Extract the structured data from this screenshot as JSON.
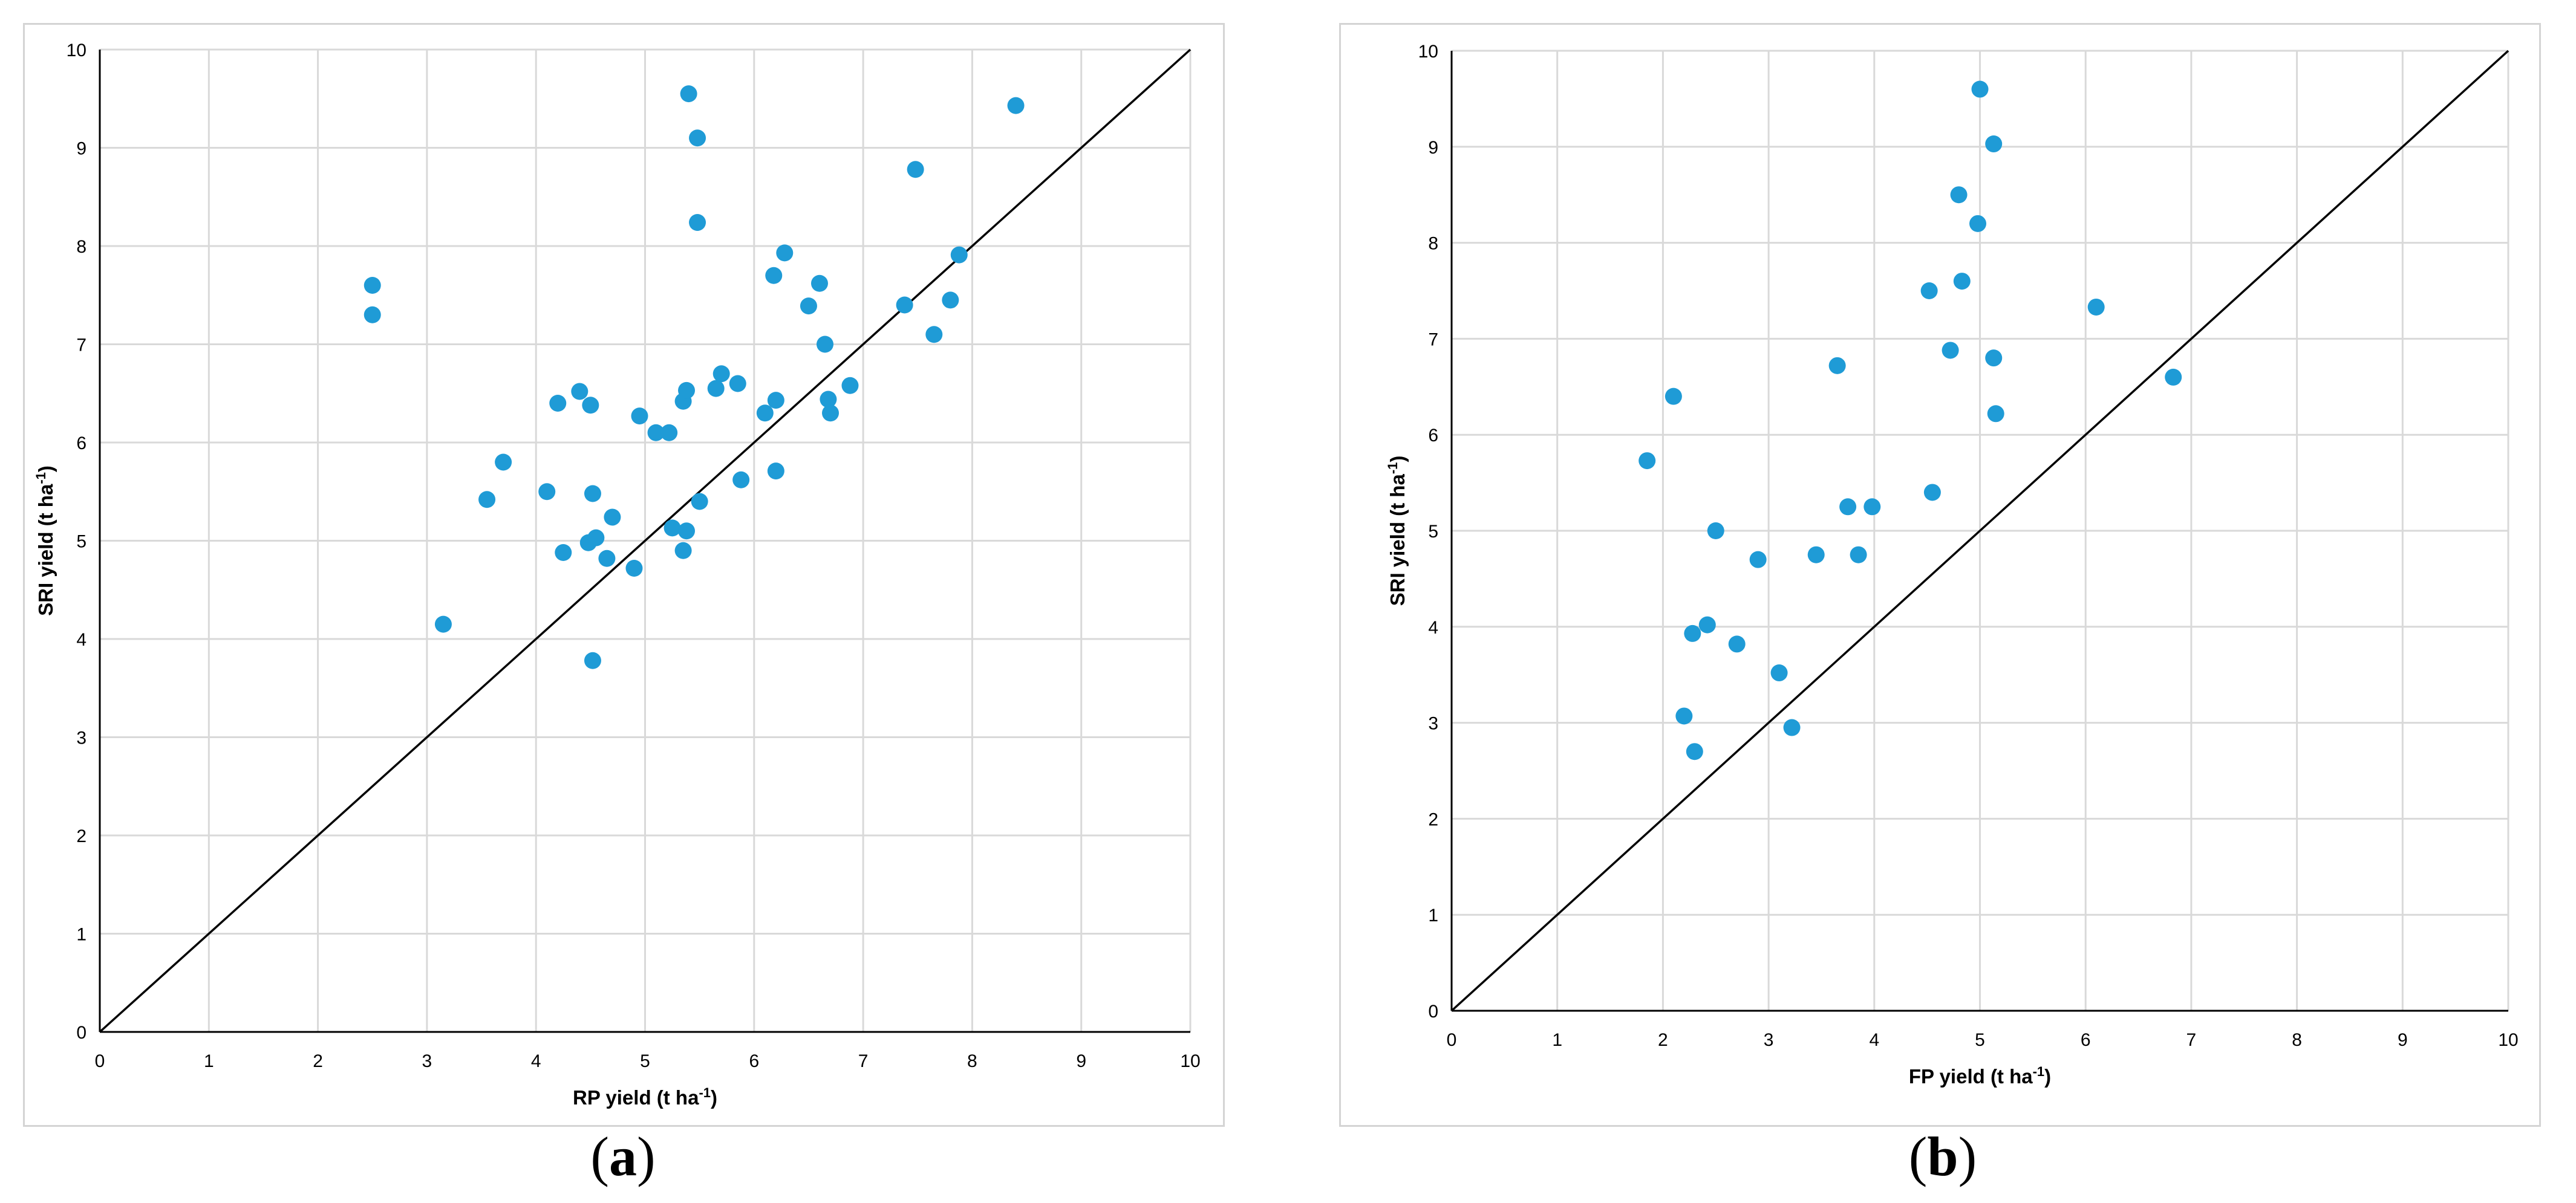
{
  "colors": {
    "point": "#1f9bd6",
    "grid": "#d9d9d9",
    "axis": "#000000",
    "frame": "#d4d4d4"
  },
  "panels": {
    "a": {
      "label_open": "(",
      "label_letter": "a",
      "label_close": ")"
    },
    "b": {
      "label_open": "(",
      "label_letter": "b",
      "label_close": ")"
    }
  },
  "chart_data": [
    {
      "type": "scatter",
      "panel": "a",
      "title": "",
      "xlabel": "RP yield (t ha-1)",
      "ylabel": "SRI yield (t ha-1)",
      "xlabel_parts": [
        "RP yield (t ha",
        "-1",
        ")"
      ],
      "ylabel_parts": [
        "SRI yield (t ha",
        "-1",
        ")"
      ],
      "xlim": [
        0,
        10
      ],
      "ylim": [
        0,
        10
      ],
      "xticks": [
        "0",
        "1",
        "2",
        "3",
        "4",
        "5",
        "6",
        "7",
        "8",
        "9",
        "10"
      ],
      "yticks": [
        "0",
        "1",
        "2",
        "3",
        "4",
        "5",
        "6",
        "7",
        "8",
        "9",
        "10"
      ],
      "grid": true,
      "legend": "none",
      "reference_line": [
        [
          0,
          0
        ],
        [
          10,
          10
        ]
      ],
      "series": [
        {
          "points": [
            [
              2.5,
              7.6
            ],
            [
              2.5,
              7.3
            ],
            [
              3.15,
              4.15
            ],
            [
              3.55,
              5.42
            ],
            [
              3.7,
              5.8
            ],
            [
              4.1,
              5.5
            ],
            [
              4.2,
              6.4
            ],
            [
              4.25,
              4.88
            ],
            [
              4.4,
              6.52
            ],
            [
              4.48,
              4.98
            ],
            [
              4.5,
              6.38
            ],
            [
              4.52,
              5.48
            ],
            [
              4.55,
              5.03
            ],
            [
              4.52,
              3.78
            ],
            [
              4.65,
              4.82
            ],
            [
              4.7,
              5.24
            ],
            [
              4.9,
              4.72
            ],
            [
              4.95,
              6.27
            ],
            [
              5.1,
              6.1
            ],
            [
              5.22,
              6.1
            ],
            [
              5.25,
              5.13
            ],
            [
              5.35,
              4.9
            ],
            [
              5.35,
              6.42
            ],
            [
              5.38,
              6.53
            ],
            [
              5.38,
              5.1
            ],
            [
              5.4,
              9.55
            ],
            [
              5.48,
              9.1
            ],
            [
              5.48,
              8.24
            ],
            [
              5.5,
              5.4
            ],
            [
              5.65,
              6.55
            ],
            [
              5.7,
              6.7
            ],
            [
              5.85,
              6.6
            ],
            [
              5.88,
              5.62
            ],
            [
              6.1,
              6.3
            ],
            [
              6.18,
              7.7
            ],
            [
              6.2,
              6.43
            ],
            [
              6.2,
              5.71
            ],
            [
              6.28,
              7.93
            ],
            [
              6.5,
              7.39
            ],
            [
              6.6,
              7.62
            ],
            [
              6.65,
              7.0
            ],
            [
              6.68,
              6.44
            ],
            [
              6.7,
              6.3
            ],
            [
              6.88,
              6.58
            ],
            [
              7.38,
              7.4
            ],
            [
              7.48,
              8.78
            ],
            [
              7.65,
              7.1
            ],
            [
              7.8,
              7.45
            ],
            [
              7.88,
              7.91
            ],
            [
              8.4,
              9.43
            ]
          ]
        }
      ]
    },
    {
      "type": "scatter",
      "panel": "b",
      "title": "",
      "xlabel": "FP yield (t ha-1)",
      "ylabel": "SRI yield (t ha-1)",
      "xlabel_parts": [
        "FP yield (t ha",
        "-1",
        ")"
      ],
      "ylabel_parts": [
        "SRI yield (t ha",
        "-1",
        ")"
      ],
      "xlim": [
        0,
        10
      ],
      "ylim": [
        0,
        10
      ],
      "xticks": [
        "0",
        "1",
        "2",
        "3",
        "4",
        "5",
        "6",
        "7",
        "8",
        "9",
        "10"
      ],
      "yticks": [
        "0",
        "1",
        "2",
        "3",
        "4",
        "5",
        "6",
        "7",
        "8",
        "9",
        "10"
      ],
      "grid": true,
      "legend": "none",
      "reference_line": [
        [
          0,
          0
        ],
        [
          10,
          10
        ]
      ],
      "series": [
        {
          "points": [
            [
              1.85,
              5.73
            ],
            [
              2.1,
              6.4
            ],
            [
              2.2,
              3.07
            ],
            [
              2.28,
              3.93
            ],
            [
              2.3,
              2.7
            ],
            [
              2.42,
              4.02
            ],
            [
              2.5,
              5.0
            ],
            [
              2.7,
              3.82
            ],
            [
              2.9,
              4.7
            ],
            [
              3.1,
              3.52
            ],
            [
              3.22,
              2.95
            ],
            [
              3.45,
              4.75
            ],
            [
              3.65,
              6.72
            ],
            [
              3.75,
              5.25
            ],
            [
              3.85,
              4.75
            ],
            [
              3.98,
              5.25
            ],
            [
              4.52,
              7.5
            ],
            [
              4.55,
              5.4
            ],
            [
              4.72,
              6.88
            ],
            [
              4.8,
              8.5
            ],
            [
              4.83,
              7.6
            ],
            [
              4.98,
              8.2
            ],
            [
              5.0,
              9.6
            ],
            [
              5.13,
              9.03
            ],
            [
              5.13,
              6.8
            ],
            [
              5.15,
              6.22
            ],
            [
              6.1,
              7.33
            ],
            [
              6.83,
              6.6
            ]
          ]
        }
      ]
    }
  ]
}
